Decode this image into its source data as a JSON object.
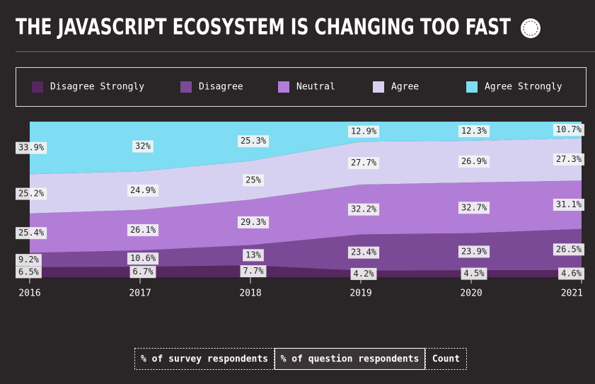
{
  "chart_data": {
    "type": "stacked-area",
    "title": "THE JAVASCRIPT ECOSYSTEM IS CHANGING TOO FAST",
    "x": [
      2016,
      2017,
      2018,
      2019,
      2020,
      2021
    ],
    "series": [
      {
        "name": "Disagree Strongly",
        "color": "#55285f",
        "values": [
          6.5,
          6.7,
          7.7,
          4.2,
          4.5,
          4.6
        ],
        "value_labels": [
          "6.5%",
          "6.7%",
          "7.7%",
          "4.2%",
          "4.5%",
          "4.6%"
        ]
      },
      {
        "name": "Disagree",
        "color": "#7b4a97",
        "values": [
          9.2,
          10.6,
          13,
          23.4,
          23.9,
          26.5
        ],
        "value_labels": [
          "9.2%",
          "10.6%",
          "13%",
          "23.4%",
          "23.9%",
          "26.5%"
        ]
      },
      {
        "name": "Neutral",
        "color": "#b27dd6",
        "values": [
          25.4,
          26.1,
          29.3,
          32.2,
          32.7,
          31.1
        ],
        "value_labels": [
          "25.4%",
          "26.1%",
          "29.3%",
          "32.2%",
          "32.7%",
          "31.1%"
        ]
      },
      {
        "name": "Agree",
        "color": "#d6d1f1",
        "values": [
          25.2,
          24.9,
          25,
          27.7,
          26.9,
          27.3
        ],
        "value_labels": [
          "25.2%",
          "24.9%",
          "25%",
          "27.7%",
          "26.9%",
          "27.3%"
        ]
      },
      {
        "name": "Agree Strongly",
        "color": "#7edcf3",
        "values": [
          33.9,
          32,
          25.3,
          12.9,
          12.3,
          10.7
        ],
        "value_labels": [
          "33.9%",
          "32%",
          "25.3%",
          "12.9%",
          "12.3%",
          "10.7%"
        ]
      }
    ]
  },
  "controls": [
    "% of survey respondents",
    "% of question respondents",
    "Count"
  ]
}
